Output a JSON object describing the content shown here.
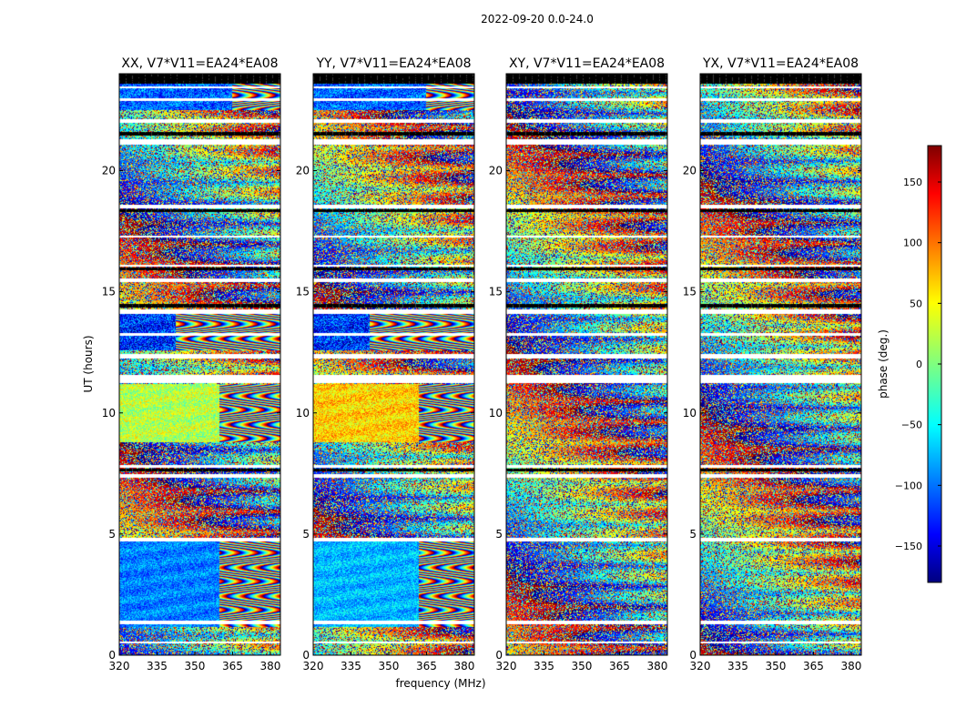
{
  "chart_data": {
    "type": "heatmap",
    "suptitle": "2022-09-20 0.0-24.0",
    "panels": [
      {
        "title": "XX, V7*V11=EA24*EA08",
        "pol": "XX",
        "coherence": [
          {
            "from": 1.2,
            "to": 4.7,
            "base": -90,
            "spread": 35,
            "cut": 0.62
          },
          {
            "from": 8.8,
            "to": 11.2,
            "base": 20,
            "spread": 40,
            "cut": 0.62
          },
          {
            "from": 12.6,
            "to": 14.1,
            "base": -120,
            "spread": 60,
            "cut": 0.35
          },
          {
            "from": 22.5,
            "to": 24.0,
            "base": -100,
            "spread": 50,
            "cut": 0.7
          }
        ]
      },
      {
        "title": "YY, V7*V11=EA24*EA08",
        "pol": "YY",
        "coherence": [
          {
            "from": 1.2,
            "to": 4.7,
            "base": -70,
            "spread": 35,
            "cut": 0.65
          },
          {
            "from": 8.8,
            "to": 11.2,
            "base": 60,
            "spread": 40,
            "cut": 0.65
          },
          {
            "from": 12.6,
            "to": 14.1,
            "base": -120,
            "spread": 60,
            "cut": 0.35
          },
          {
            "from": 22.5,
            "to": 24.0,
            "base": -100,
            "spread": 50,
            "cut": 0.7
          }
        ]
      },
      {
        "title": "XY, V7*V11=EA24*EA08",
        "pol": "XY",
        "coherence": []
      },
      {
        "title": "YX, V7*V11=EA24*EA08",
        "pol": "YX",
        "coherence": []
      }
    ],
    "xlabel": "frequency (MHz)",
    "ylabel": "UT (hours)",
    "xlim": [
      320,
      384
    ],
    "xticks": [
      320,
      335,
      350,
      365,
      380
    ],
    "ylim": [
      0,
      24
    ],
    "yticks": [
      0,
      5,
      10,
      15,
      20
    ],
    "colorbar": {
      "label": "phase (deg.)",
      "range": [
        -180,
        180
      ],
      "ticks": [
        -150,
        -100,
        -50,
        0,
        50,
        100,
        150
      ],
      "tick_labels": [
        "−150",
        "−100",
        "−50",
        "0",
        "50",
        "100",
        "150"
      ],
      "colormap": "jet"
    },
    "flagged_gaps_hours": [
      [
        0.5,
        0.6
      ],
      [
        1.3,
        1.45
      ],
      [
        4.7,
        4.85
      ],
      [
        7.35,
        7.5
      ],
      [
        7.75,
        7.85
      ],
      [
        11.25,
        11.6
      ],
      [
        12.25,
        12.45
      ],
      [
        13.2,
        13.3
      ],
      [
        14.1,
        14.3
      ],
      [
        15.4,
        15.55
      ],
      [
        16.05,
        16.15
      ],
      [
        17.25,
        17.35
      ],
      [
        18.45,
        18.6
      ],
      [
        21.1,
        21.3
      ],
      [
        22.0,
        22.15
      ],
      [
        22.9,
        23.0
      ],
      [
        23.4,
        23.5
      ]
    ],
    "black_bands_hours": [
      [
        7.6,
        7.72
      ],
      [
        14.35,
        14.5
      ],
      [
        15.9,
        16.02
      ],
      [
        18.3,
        18.42
      ],
      [
        21.45,
        21.6
      ],
      [
        23.6,
        24.0
      ]
    ]
  }
}
